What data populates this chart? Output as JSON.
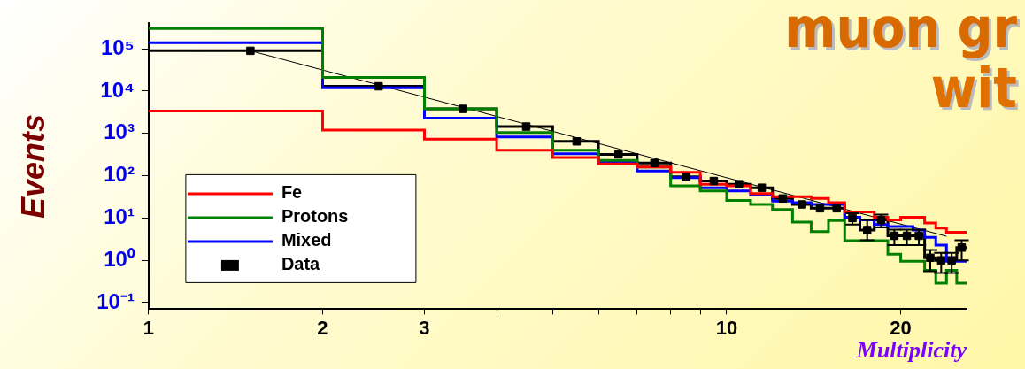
{
  "chart_data": {
    "type": "histogram",
    "xlabel": "Multiplicity",
    "ylabel": "Events",
    "annotations": [
      "muon gr",
      "wit"
    ],
    "log": "xy",
    "grid": false,
    "legend": "bottom left",
    "xlim": [
      1,
      26
    ],
    "ylim": [
      0.07,
      400000
    ],
    "xticks": [
      1,
      2,
      3,
      {
        "value": 4,
        "label": null
      },
      {
        "value": 5,
        "label": null
      },
      {
        "value": 6,
        "label": null
      },
      {
        "value": 7,
        "label": null
      },
      {
        "value": 8,
        "label": null
      },
      {
        "value": 9,
        "label": null
      },
      10,
      20
    ],
    "yticks": [
      {
        "value": 0.1,
        "label": "10⁻¹"
      },
      {
        "value": 1,
        "label": "10⁰"
      },
      {
        "value": 10,
        "label": "10¹"
      },
      {
        "value": 100,
        "label": "10²"
      },
      {
        "value": 1000,
        "label": "10³"
      },
      {
        "value": 10000,
        "label": "10⁴"
      },
      {
        "value": 100000,
        "label": "10⁵"
      }
    ],
    "bins": [
      1,
      2,
      3,
      4,
      5,
      6,
      7,
      8,
      9,
      10,
      11,
      12,
      13,
      14,
      15,
      16,
      17,
      18,
      19,
      20,
      21,
      22,
      23,
      24,
      25,
      26
    ],
    "series": [
      {
        "name": "Fe",
        "color": "#ff0000",
        "values": [
          3400,
          1200,
          730,
          400,
          270,
          190,
          160,
          120,
          63,
          58,
          38,
          32,
          32,
          29,
          23,
          14,
          14,
          10.5,
          9,
          10.5,
          10.5,
          7.6,
          5.8,
          4.6,
          4.6
        ]
      },
      {
        "name": "Protons",
        "color": "#008000",
        "values": [
          300000,
          21000,
          3800,
          1050,
          400,
          230,
          160,
          58,
          44,
          26,
          21,
          16,
          8,
          4.8,
          8.7,
          2.9,
          2.9,
          2.9,
          1.4,
          0.95,
          0.95,
          0.58,
          0.29,
          0.58,
          0.29
        ]
      },
      {
        "name": "Mixed",
        "color": "#0000ff",
        "values": [
          140000,
          12000,
          2300,
          830,
          330,
          210,
          130,
          90,
          52,
          44,
          35,
          25,
          23,
          21,
          21,
          10.5,
          9,
          7,
          6.3,
          6.3,
          5.2,
          3.5,
          2.3,
          0.95,
          0.95
        ]
      },
      {
        "color": "#000000",
        "values": [
          90000,
          13000,
          3800,
          1450,
          650,
          320,
          200,
          95,
          75,
          63,
          52,
          29,
          21,
          17,
          17,
          10,
          5.2,
          9,
          3.8,
          3.8,
          3.8,
          1.15,
          1.0,
          1.0,
          2
        ]
      },
      {
        "type": "line",
        "color": "#000000",
        "x": [
          1.5,
          24
        ],
        "values": [
          90000,
          3.7
        ]
      },
      {
        "name": "Data",
        "type": "scatter",
        "marker": "square",
        "color": "#000000",
        "x": [
          1.5,
          2.5,
          3.5,
          4.5,
          5.5,
          6.5,
          7.5,
          8.5,
          9.5,
          10.5,
          11.5,
          12.5,
          13.5,
          14.5,
          15.5,
          16.5,
          17.5,
          18.5,
          19.5,
          20.5,
          21.5,
          22.5,
          23.5,
          24.5,
          25.5
        ],
        "values": [
          90000,
          13000,
          3800,
          1450,
          650,
          320,
          200,
          95,
          75,
          63,
          52,
          29,
          21,
          17,
          17,
          10,
          5.2,
          9,
          3.8,
          3.8,
          3.8,
          1.15,
          1.0,
          1.0,
          2
        ],
        "errors": [
          null,
          null,
          null,
          null,
          null,
          null,
          null,
          null,
          null,
          null,
          null,
          null,
          null,
          null,
          null,
          3,
          [
            3,
            9
          ],
          3,
          1.5,
          1.5,
          1.5,
          0.6,
          0.5,
          0.5,
          1
        ]
      }
    ]
  }
}
